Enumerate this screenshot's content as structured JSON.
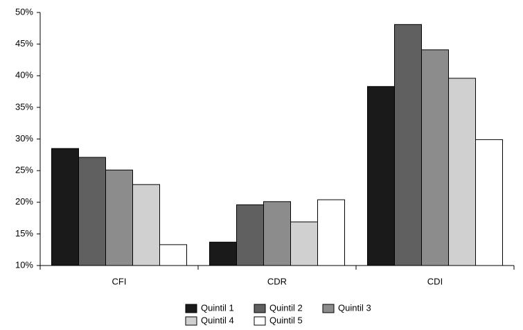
{
  "chart_data": {
    "type": "bar",
    "categories": [
      "CFI",
      "CDR",
      "CDI"
    ],
    "series": [
      {
        "name": "Quintil 1",
        "color": "#1a1a1a",
        "values": [
          28.5,
          13.7,
          38.3
        ]
      },
      {
        "name": "Quintil 2",
        "color": "#606060",
        "values": [
          27.1,
          19.6,
          48.1
        ]
      },
      {
        "name": "Quintil 3",
        "color": "#8c8c8c",
        "values": [
          25.1,
          20.1,
          44.1
        ]
      },
      {
        "name": "Quintil 4",
        "color": "#d0d0d0",
        "values": [
          22.8,
          16.9,
          39.6
        ]
      },
      {
        "name": "Quintil 5",
        "color": "#ffffff",
        "values": [
          13.3,
          20.4,
          29.9
        ]
      }
    ],
    "ylim": [
      10,
      50
    ],
    "yticks": [
      {
        "value": 10,
        "label": "10%"
      },
      {
        "value": 15,
        "label": "15%"
      },
      {
        "value": 20,
        "label": "20%"
      },
      {
        "value": 25,
        "label": "25%"
      },
      {
        "value": 30,
        "label": "30%"
      },
      {
        "value": 35,
        "label": "35%"
      },
      {
        "value": 40,
        "label": "40%"
      },
      {
        "value": 45,
        "label": "45%"
      },
      {
        "value": 50,
        "label": "50%"
      }
    ],
    "grid": false,
    "legend": "bottom"
  }
}
